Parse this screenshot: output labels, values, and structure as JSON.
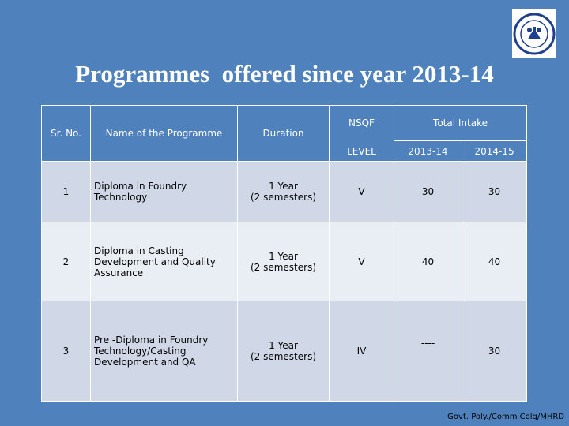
{
  "slide": {
    "title": "Programmes  offered since year 2013-14",
    "footer": "Govt. Poly./Comm Colg/MHRD",
    "logo_icon": "institute-emblem-icon"
  },
  "table": {
    "headers": {
      "sr_no": "Sr. No.",
      "programme": "Name of the Programme",
      "duration": "Duration",
      "nsqf": "NSQF",
      "level": "LEVEL",
      "total_intake": "Total Intake",
      "year1": "2013-14",
      "year2": "2014-15"
    },
    "rows": [
      {
        "sr_no": "1",
        "programme": "Diploma in Foundry Technology",
        "duration_line1": "1 Year",
        "duration_line2": "(2 semesters)",
        "level": "V",
        "intake_2013": "30",
        "intake_2014": "30"
      },
      {
        "sr_no": "2",
        "programme": "Diploma in Casting Development and Quality Assurance",
        "duration_line1": "1  Year",
        "duration_line2": "(2 semesters)",
        "level": "V",
        "intake_2013": "40",
        "intake_2014": "40"
      },
      {
        "sr_no": "3",
        "programme": "Pre -Diploma in Foundry Technology/Casting Development and QA",
        "duration_line1": "1 Year",
        "duration_line2": "(2 semesters)",
        "level": "IV",
        "intake_2013": "----",
        "intake_2014": "30"
      }
    ]
  },
  "colors": {
    "background": "#4f81bd",
    "row_odd": "#d0d8e8",
    "row_even": "#e9edf4"
  }
}
